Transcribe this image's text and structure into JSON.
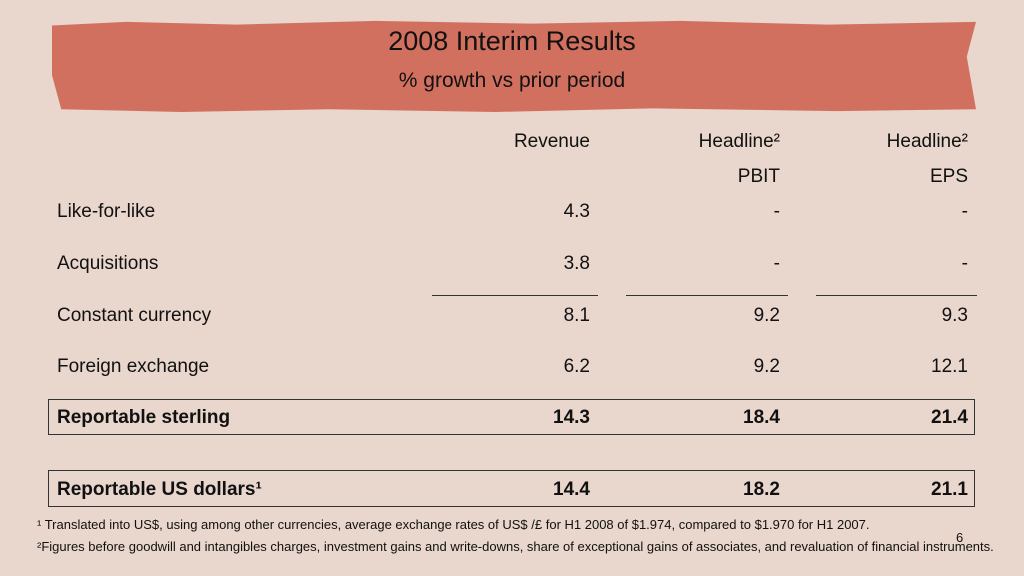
{
  "header": {
    "title": "2008 Interim Results",
    "subtitle": "% growth vs prior period"
  },
  "columns": [
    {
      "line1": "Revenue",
      "line2": ""
    },
    {
      "line1": "Headline²",
      "line2": "PBIT"
    },
    {
      "line1": "Headline²",
      "line2": "EPS"
    }
  ],
  "rows": [
    {
      "label": "Like-for-like",
      "values": [
        "4.3",
        "-",
        "-"
      ]
    },
    {
      "label": "Acquisitions",
      "values": [
        "3.8",
        "-",
        "-"
      ]
    },
    {
      "label": "Constant currency",
      "values": [
        "8.1",
        "9.2",
        "9.3"
      ]
    },
    {
      "label": "Foreign exchange",
      "values": [
        "6.2",
        "9.2",
        "12.1"
      ]
    },
    {
      "label": "Reportable sterling",
      "values": [
        "14.3",
        "18.4",
        "21.4"
      ]
    },
    {
      "label": "Reportable US dollars¹",
      "values": [
        "14.4",
        "18.2",
        "21.1"
      ]
    }
  ],
  "footnotes": [
    "¹ Translated into US$, using among other currencies, average exchange rates of US$ /£  for H1 2008 of $1.974, compared to $1.970 for H1 2007.",
    "²Figures before goodwill and intangibles charges, investment gains and write-downs, share of exceptional gains of associates, and revaluation of financial instruments."
  ],
  "page_number": "6"
}
